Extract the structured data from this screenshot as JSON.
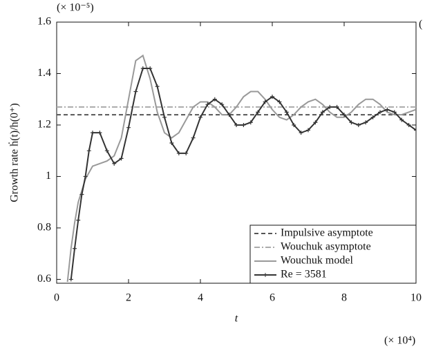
{
  "chart_data": {
    "type": "line",
    "xlabel": "t",
    "ylabel": "Growth rate ḣ(t)/h(0⁺)",
    "x_scale_label": "(× 10⁴)",
    "y_scale_label": "(× 10⁻⁵)",
    "panel_label": "(",
    "xlim": [
      0,
      10
    ],
    "xticks": [
      0,
      2,
      4,
      6,
      8,
      10
    ],
    "ylim": [
      0.585,
      1.6
    ],
    "yticks": [
      0.6,
      0.8,
      1.0,
      1.2,
      1.4,
      1.6
    ],
    "legend": "lower right",
    "series": [
      {
        "name": "Impulsive asymptote",
        "color": "#555555",
        "dash": "6 4",
        "x": [
          0,
          10
        ],
        "values": [
          1.24,
          1.24
        ]
      },
      {
        "name": "Wouchuk asymptote",
        "color": "#aaaaaa",
        "dash": "8 3 2 3",
        "x": [
          0,
          10
        ],
        "values": [
          1.27,
          1.27
        ]
      },
      {
        "name": "Wouchuk model",
        "color": "#999999",
        "x": [
          0.3,
          0.4,
          0.5,
          0.6,
          0.8,
          1.0,
          1.2,
          1.4,
          1.6,
          1.8,
          2.0,
          2.2,
          2.4,
          2.6,
          2.8,
          3.0,
          3.2,
          3.4,
          3.6,
          3.8,
          4.0,
          4.2,
          4.4,
          4.6,
          4.8,
          5.0,
          5.2,
          5.4,
          5.6,
          5.8,
          6.0,
          6.2,
          6.4,
          6.6,
          6.8,
          7.0,
          7.2,
          7.4,
          7.6,
          7.8,
          8.0,
          8.2,
          8.4,
          8.6,
          8.8,
          9.0,
          9.2,
          9.4,
          9.6,
          9.8,
          10.0
        ],
        "values": [
          0.59,
          0.72,
          0.82,
          0.9,
          0.99,
          1.04,
          1.05,
          1.06,
          1.08,
          1.15,
          1.3,
          1.45,
          1.47,
          1.38,
          1.25,
          1.17,
          1.15,
          1.17,
          1.22,
          1.27,
          1.29,
          1.29,
          1.27,
          1.24,
          1.24,
          1.27,
          1.31,
          1.33,
          1.33,
          1.3,
          1.26,
          1.23,
          1.22,
          1.24,
          1.27,
          1.29,
          1.3,
          1.28,
          1.25,
          1.23,
          1.23,
          1.25,
          1.28,
          1.3,
          1.3,
          1.28,
          1.25,
          1.24,
          1.24,
          1.25,
          1.26
        ]
      },
      {
        "name": "Re = 3581",
        "color": "#333333",
        "marker": "+",
        "x": [
          0.4,
          0.5,
          0.6,
          0.7,
          0.8,
          0.9,
          1.0,
          1.2,
          1.4,
          1.6,
          1.8,
          2.0,
          2.2,
          2.4,
          2.6,
          2.8,
          3.0,
          3.2,
          3.4,
          3.6,
          3.8,
          4.0,
          4.2,
          4.4,
          4.6,
          4.8,
          5.0,
          5.2,
          5.4,
          5.6,
          5.8,
          6.0,
          6.2,
          6.4,
          6.6,
          6.8,
          7.0,
          7.2,
          7.4,
          7.6,
          7.8,
          8.0,
          8.2,
          8.4,
          8.6,
          8.8,
          9.0,
          9.2,
          9.4,
          9.6,
          9.8,
          10.0
        ],
        "values": [
          0.6,
          0.72,
          0.83,
          0.93,
          1.0,
          1.1,
          1.17,
          1.17,
          1.1,
          1.05,
          1.07,
          1.19,
          1.33,
          1.42,
          1.42,
          1.35,
          1.23,
          1.13,
          1.09,
          1.09,
          1.15,
          1.23,
          1.28,
          1.3,
          1.28,
          1.24,
          1.2,
          1.2,
          1.21,
          1.25,
          1.29,
          1.31,
          1.29,
          1.25,
          1.2,
          1.17,
          1.18,
          1.21,
          1.25,
          1.27,
          1.27,
          1.24,
          1.21,
          1.2,
          1.21,
          1.23,
          1.25,
          1.26,
          1.25,
          1.22,
          1.2,
          1.18
        ]
      }
    ]
  }
}
